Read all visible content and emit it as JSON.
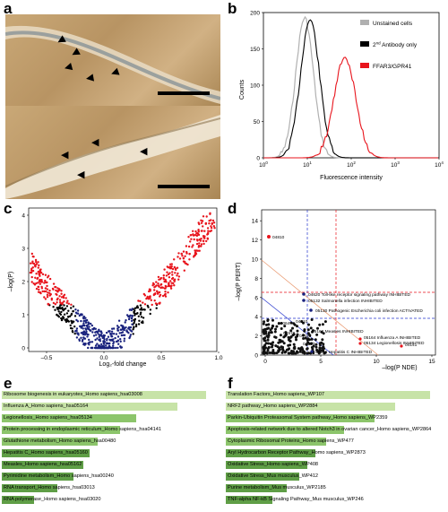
{
  "panels": {
    "a": "a",
    "b": "b",
    "c": "c",
    "d": "d",
    "e": "e",
    "f": "f"
  },
  "panel_b": {
    "legend": [
      "Unstained cells",
      "Antibody only",
      "FFAR3/GPR41"
    ],
    "legend_sup": "2",
    "legend_sup_rest": "nd",
    "ylabel": "Counts",
    "xlabel": "Fluorescence intensity",
    "y_ticks": [
      "0",
      "50",
      "100",
      "150",
      "200"
    ],
    "x_ticks": [
      "10",
      "10",
      "10",
      "10",
      "10"
    ],
    "x_tick_exp": [
      "0",
      "1",
      "2",
      "3",
      "4"
    ],
    "colors": {
      "unstained": "#b0b0b0",
      "antibody": "#000000",
      "ffar3": "#e8141c"
    }
  },
  "panel_c": {
    "ylabel": "–log(P)",
    "xlabel": "Log₂-fold change",
    "y_ticks": [
      "0",
      "1",
      "2",
      "3",
      "4"
    ],
    "x_ticks": [
      "–0.5",
      "0.0",
      "0.5",
      "1.0"
    ],
    "colors": {
      "sig": "#e8141c",
      "nonsig": "#1a237e",
      "other": "#000000"
    }
  },
  "panel_d": {
    "ylabel": "–log(P PERT)",
    "xlabel": "–log(P NDE)",
    "y_ticks": [
      "0",
      "2",
      "4",
      "6",
      "8",
      "10",
      "12",
      "14"
    ],
    "x_ticks": [
      "0",
      "5",
      "10",
      "15"
    ],
    "annotations": [
      "04810",
      "04620 Toll-like receptor signaling pathway INHIBITED",
      "05132 Salmonella infection INHIBITED",
      "05130 Pathogenic Escherichia coli infection ACTIVATED",
      "05162 Measles INHIBITED",
      "05164 Influenza A INHIBITED",
      "05134 Legionellosis INHIBITED",
      "04141",
      "05160 Hepatitis C INHIBITED",
      "03013",
      "04510",
      "04623",
      "04978",
      "04064"
    ]
  },
  "panel_e": {
    "items": [
      {
        "label": "Ribosome biogenesis in eukaryotes_Homo sapiens_hsa03008",
        "value": 1.0
      },
      {
        "label": "Influenza A_Homo sapiens_hsa05164",
        "value": 0.86
      },
      {
        "label": "Legionellosis_Homo sapiens_hsa05134",
        "value": 0.66
      },
      {
        "label": "Protein processing in endoplasmic reticulum_Homo sapiens_hsa04141",
        "value": 0.58
      },
      {
        "label": "Glutathione metabolism_Homo sapiens_hsa00480",
        "value": 0.47
      },
      {
        "label": "Hepatitis C_Homo sapiens_hsa05160",
        "value": 0.43
      },
      {
        "label": "Measles_Homo sapiens_hsa05162",
        "value": 0.4
      },
      {
        "label": "Pyrimidine metabolism_Homo sapiens_hsa00240",
        "value": 0.35
      },
      {
        "label": "RNA transport_Homo sapiens_hsa03013",
        "value": 0.27
      },
      {
        "label": "RNA polymerase_Homo sapiens_hsa03020",
        "value": 0.16
      }
    ]
  },
  "panel_f": {
    "items": [
      {
        "label": "Translation Factors_Homo sapiens_WP107",
        "value": 1.0
      },
      {
        "label": "NRF2 pathway_Homo sapiens_WP2884",
        "value": 0.83
      },
      {
        "label": "Parkin-Ubiquitin Proteasomal System pathway_Homo sapiens_WP2359",
        "value": 0.73
      },
      {
        "label": "Apoptosis-related network due to altered Notch3 in ovarian cancer_Homo sapiens_WP2864",
        "value": 0.58
      },
      {
        "label": "Cytoplasmic Ribosomal Proteins_Homo sapiens_WP477",
        "value": 0.49
      },
      {
        "label": "Aryl Hydrocarbon Receptor Pathway_Homo sapiens_WP2873",
        "value": 0.44
      },
      {
        "label": "Oxidative Stress_Homo sapiens_WP408",
        "value": 0.4
      },
      {
        "label": "Oxidative Stress_Mus musculus_WP412",
        "value": 0.36
      },
      {
        "label": "Purine metabolism_Mus musculus_WP2185",
        "value": 0.3
      },
      {
        "label": "TNF-alpha NF-kB Signaling Pathway_Mus musculus_WP246",
        "value": 0.23
      }
    ]
  },
  "colors": {
    "bar_light": "#c7e3a7",
    "bar_mid": "#8cc56b",
    "bar_dark": "#5f9e46"
  }
}
